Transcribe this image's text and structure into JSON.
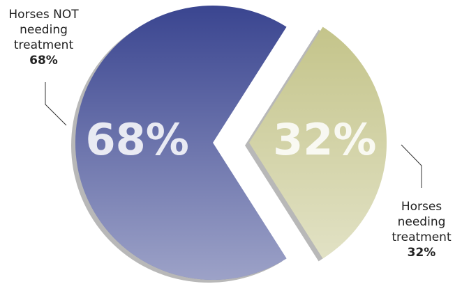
{
  "chart_data": {
    "type": "pie",
    "categories": [
      "Horses NOT needing treatment",
      "Horses needing treatment"
    ],
    "values": [
      68,
      32
    ],
    "value_labels": [
      "68%",
      "32%"
    ],
    "colors": [
      "#3a4590",
      "#c4c48a"
    ]
  }
}
